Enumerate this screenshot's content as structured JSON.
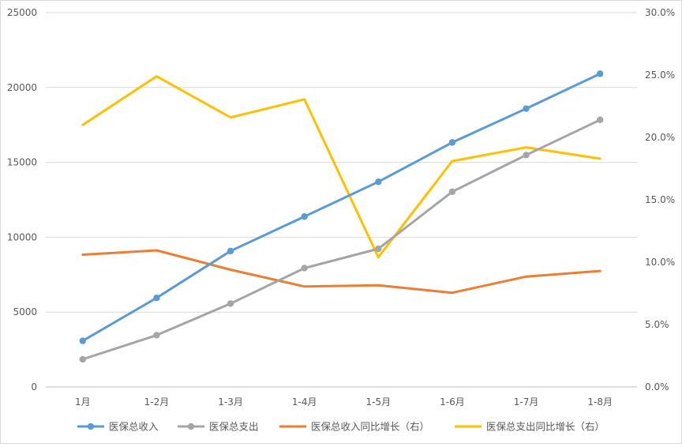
{
  "chart_data": {
    "type": "line",
    "categories": [
      "1月",
      "1-2月",
      "1-3月",
      "1-4月",
      "1-5月",
      "1-6月",
      "1-7月",
      "1-8月"
    ],
    "left_axis": {
      "ylim": [
        0,
        25000
      ],
      "ticks": [
        "0",
        "5000",
        "10000",
        "15000",
        "20000",
        "25000"
      ]
    },
    "right_axis": {
      "ylim": [
        0,
        30
      ],
      "ticks": [
        "0.0%",
        "5.0%",
        "10.0%",
        "15.0%",
        "20.0%",
        "25.0%",
        "30.0%"
      ]
    },
    "grid": "horizontal",
    "legend_position": "bottom",
    "series": [
      {
        "name": "医保总收入",
        "axis": "left",
        "color": "#5b9bd5",
        "markers": true,
        "values": [
          3080,
          5950,
          9080,
          11380,
          13700,
          16330,
          18590,
          20920
        ]
      },
      {
        "name": "医保总支出",
        "axis": "left",
        "color": "#a5a5a5",
        "markers": true,
        "values": [
          1850,
          3460,
          5570,
          7940,
          9230,
          13040,
          15490,
          17840
        ]
      },
      {
        "name": "医保总收入同比增长（右）",
        "axis": "right",
        "color": "#ed7d31",
        "markers": false,
        "values": [
          10.6,
          10.95,
          9.4,
          8.05,
          8.15,
          7.55,
          8.85,
          9.3
        ]
      },
      {
        "name": "医保总支出同比增长（右）",
        "axis": "right",
        "color": "#ffc000",
        "markers": false,
        "values": [
          21.0,
          24.9,
          21.6,
          23.05,
          10.4,
          18.1,
          19.2,
          18.3
        ]
      }
    ]
  }
}
